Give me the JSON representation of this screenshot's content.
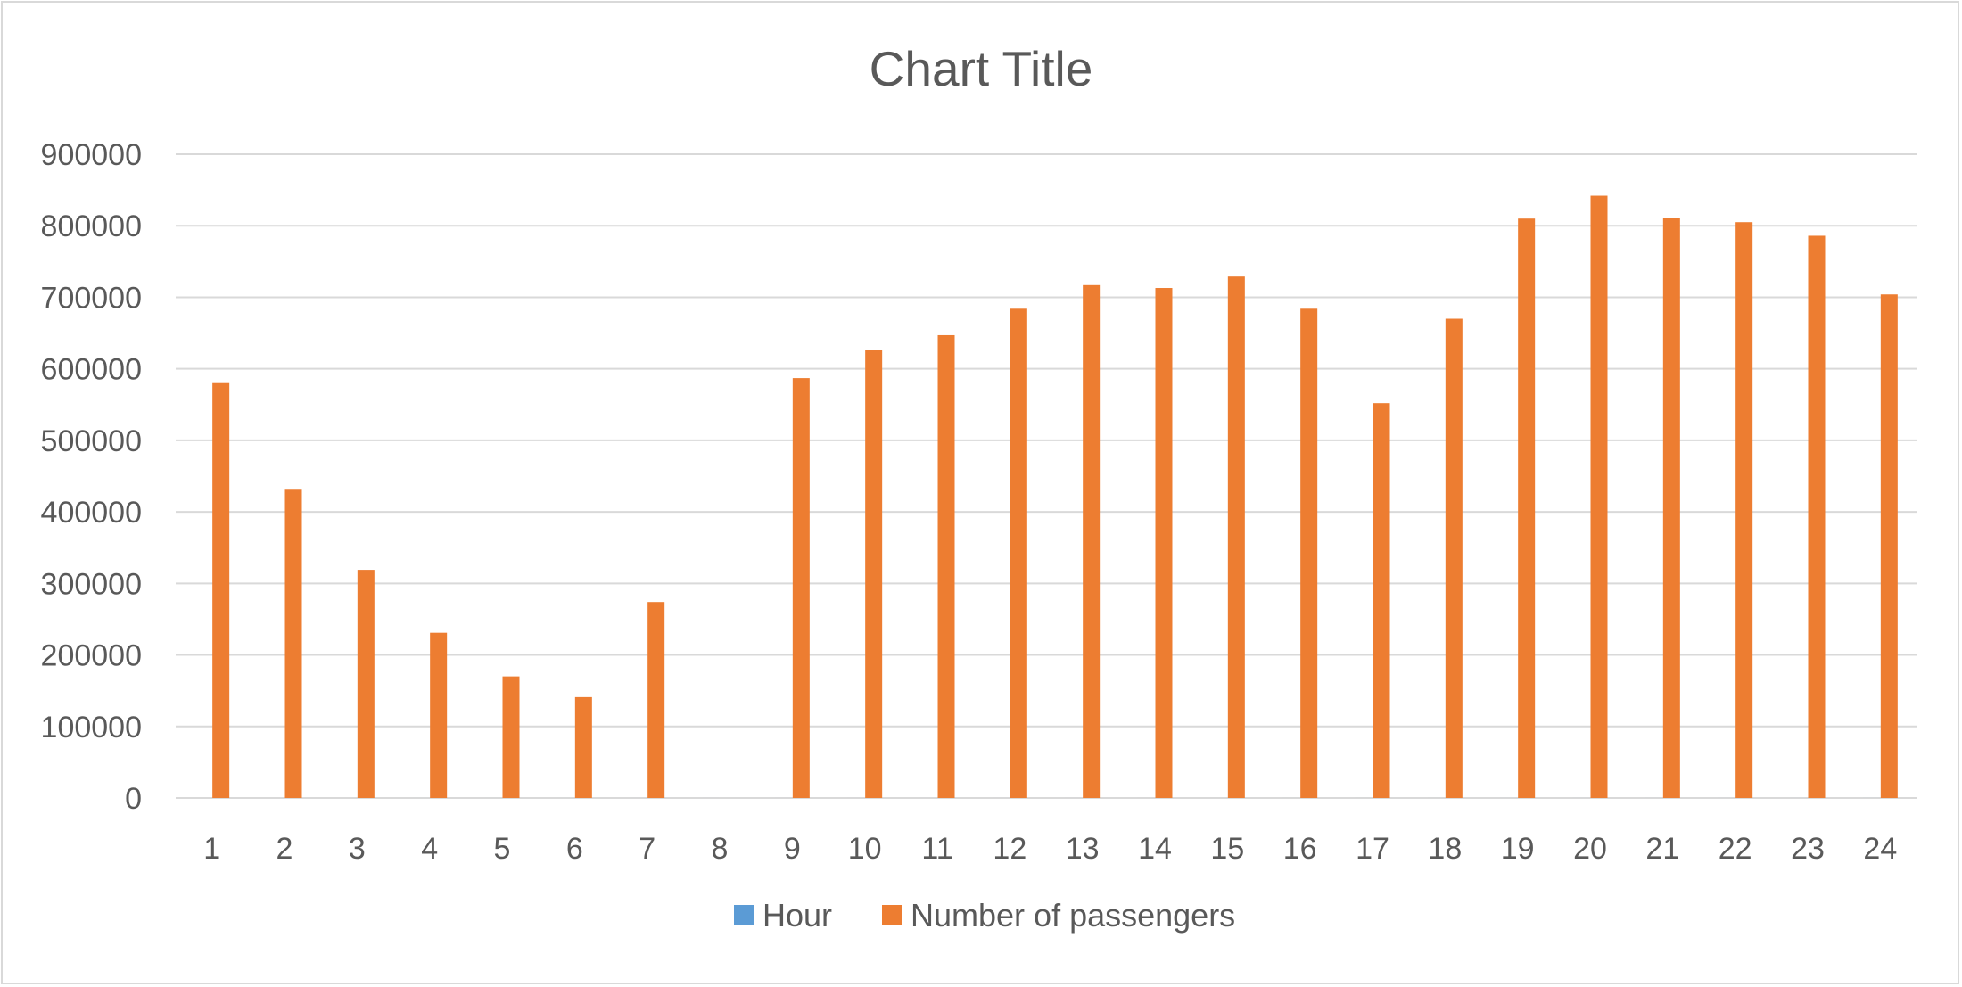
{
  "chart_data": {
    "type": "bar",
    "title": "Chart Title",
    "xlabel": "",
    "ylabel": "",
    "categories": [
      "1",
      "2",
      "3",
      "4",
      "5",
      "6",
      "7",
      "8",
      "9",
      "10",
      "11",
      "12",
      "13",
      "14",
      "15",
      "16",
      "17",
      "18",
      "19",
      "20",
      "21",
      "22",
      "23",
      "24"
    ],
    "series": [
      {
        "name": "Hour",
        "color": "#5b9bd5",
        "values": [
          1,
          2,
          3,
          4,
          5,
          6,
          7,
          8,
          9,
          10,
          11,
          12,
          13,
          14,
          15,
          16,
          17,
          18,
          19,
          20,
          21,
          22,
          23,
          24
        ]
      },
      {
        "name": "Number of passengers",
        "color": "#ed7d31",
        "values": [
          580000,
          431000,
          319000,
          231000,
          170000,
          141000,
          274000,
          0,
          587000,
          627000,
          647000,
          684000,
          717000,
          713000,
          729000,
          684000,
          552000,
          670000,
          810000,
          842000,
          811000,
          805000,
          786000,
          704000
        ]
      }
    ],
    "ylim": [
      0,
      900000
    ],
    "yticks": [
      "0",
      "100000",
      "200000",
      "300000",
      "400000",
      "500000",
      "600000",
      "700000",
      "800000",
      "900000"
    ],
    "grid": true,
    "legend_position": "bottom"
  }
}
